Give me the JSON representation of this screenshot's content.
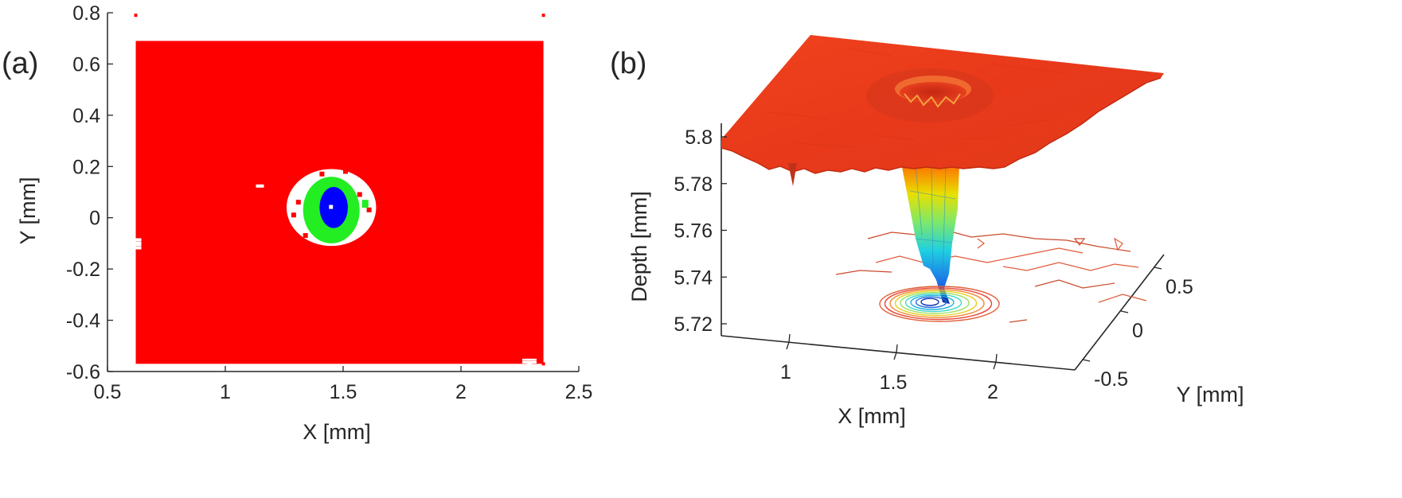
{
  "chart_data": [
    {
      "panel_label": "(a)",
      "type": "heatmap",
      "xlabel": "X [mm]",
      "ylabel": "Y [mm]",
      "xlim": [
        0.5,
        2.5
      ],
      "ylim": [
        -0.6,
        0.8
      ],
      "xticks": [
        "0.5",
        "1",
        "1.5",
        "2",
        "2.5"
      ],
      "yticks": [
        "-0.6",
        "-0.4",
        "-0.2",
        "0",
        "0.2",
        "0.4",
        "0.6",
        "0.8"
      ],
      "grid": false,
      "data_extent": {
        "x": [
          0.62,
          2.35
        ],
        "y": [
          -0.57,
          0.69
        ]
      },
      "regions": [
        {
          "class": "background",
          "color": "#ff0000",
          "x": [
            0.62,
            2.35
          ],
          "y": [
            -0.57,
            0.69
          ]
        },
        {
          "class": "unclassified",
          "color": "#ffffff",
          "center": [
            1.45,
            0.04
          ],
          "rx": 0.19,
          "ry": 0.15
        },
        {
          "class": "ring",
          "color": "#22ee22",
          "center": [
            1.45,
            0.03
          ],
          "rx": 0.12,
          "ry": 0.13
        },
        {
          "class": "core",
          "color": "#0000ff",
          "center": [
            1.46,
            0.04
          ],
          "rx": 0.06,
          "ry": 0.08
        }
      ],
      "colors": {
        "background": "#ff0000",
        "ring": "#22ee22",
        "core": "#0000ff"
      }
    },
    {
      "panel_label": "(b)",
      "type": "surface",
      "xlabel": "X [mm]",
      "ylabel": "Y [mm]",
      "zlabel": "Depth [mm]",
      "xticks": [
        "1",
        "1.5",
        "2"
      ],
      "yticks": [
        "-0.5",
        "0",
        "0.5"
      ],
      "zticks": [
        "5.72",
        "5.74",
        "5.76",
        "5.78",
        "5.8"
      ],
      "zlim": [
        5.71,
        5.81
      ],
      "surface_depth": 5.795,
      "pit": {
        "center_x": 1.5,
        "center_y": 0.0,
        "min_depth": 5.732
      },
      "colormap": "jet",
      "contour_plot": true
    }
  ]
}
